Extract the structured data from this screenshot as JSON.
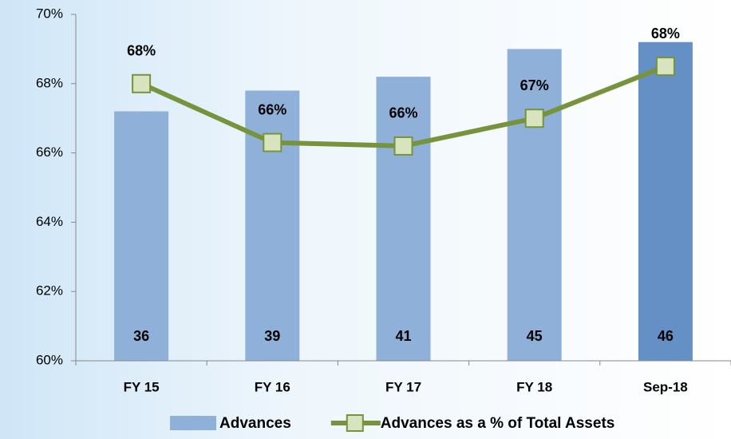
{
  "chart_data": {
    "type": "bar-line",
    "categories": [
      "FY 15",
      "FY 16",
      "FY 17",
      "FY 18",
      "Sep-18"
    ],
    "series": [
      {
        "name": "Advances",
        "type": "bar",
        "axis": "y2",
        "color": "#8fb1d9",
        "colors": [
          "#8fb1d9",
          "#8fb1d9",
          "#8fb1d9",
          "#8fb1d9",
          "#6590c6"
        ],
        "values": [
          36,
          39,
          41,
          45,
          46
        ]
      },
      {
        "name": "Advances as a % of Total Assets",
        "type": "line",
        "color": "#77933c",
        "marker_color": "#d7e4bd",
        "values": [
          68.0,
          66.3,
          66.2,
          67.0,
          68.5
        ],
        "value_labels": [
          "68%",
          "66%",
          "66%",
          "67%",
          "68%"
        ]
      }
    ],
    "ylim": [
      60,
      70
    ],
    "yticks": [
      {
        "value": 60,
        "label": "60%"
      },
      {
        "value": 62,
        "label": "62%"
      },
      {
        "value": 64,
        "label": "64%"
      },
      {
        "value": 66,
        "label": "66%"
      },
      {
        "value": 68,
        "label": "68%"
      },
      {
        "value": 70,
        "label": "70%"
      }
    ],
    "y2lim": [
      0,
      50
    ],
    "grid": false
  }
}
